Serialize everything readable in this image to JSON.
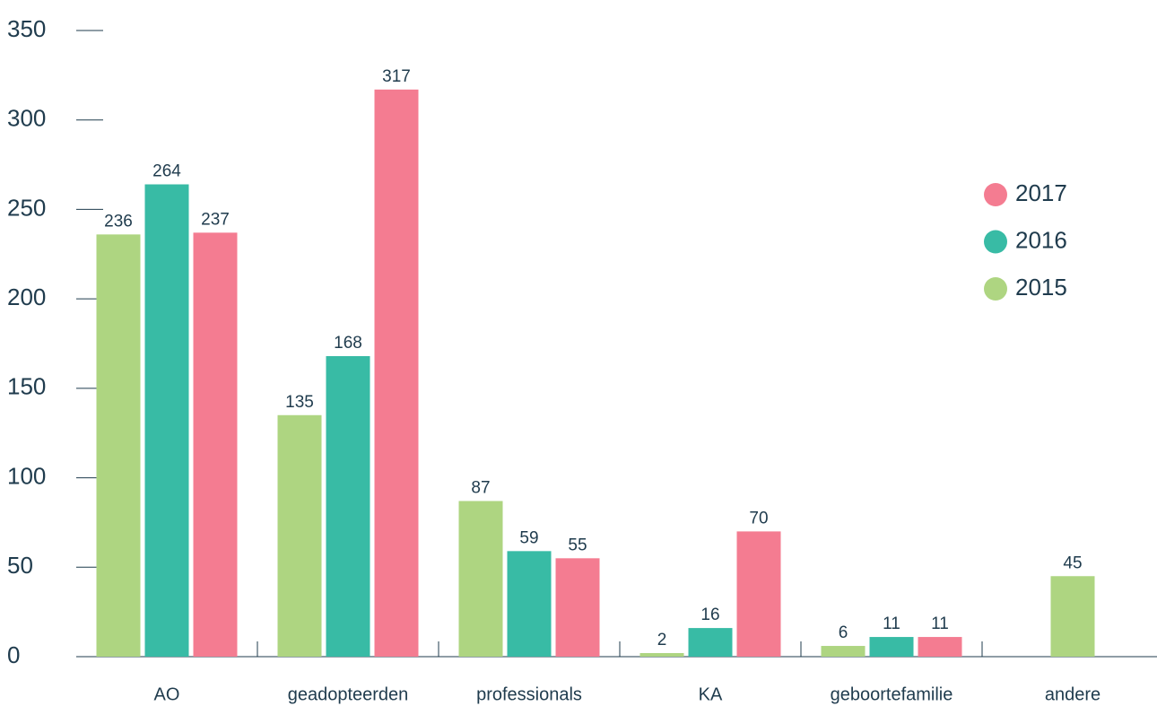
{
  "chart_data": {
    "type": "bar",
    "categories": [
      "AO",
      "geadopteerden",
      "professionals",
      "KA",
      "geboortefamilie",
      "andere"
    ],
    "series": [
      {
        "name": "2015",
        "color": "#aed581",
        "values": [
          236,
          135,
          87,
          2,
          6,
          45
        ]
      },
      {
        "name": "2016",
        "color": "#38bba5",
        "values": [
          264,
          168,
          59,
          16,
          11,
          null
        ]
      },
      {
        "name": "2017",
        "color": "#f47c91",
        "values": [
          237,
          317,
          55,
          70,
          11,
          null
        ]
      }
    ],
    "ylim": [
      0,
      350
    ],
    "yticks": [
      0,
      50,
      100,
      150,
      200,
      250,
      300,
      350
    ],
    "legend": "right"
  }
}
